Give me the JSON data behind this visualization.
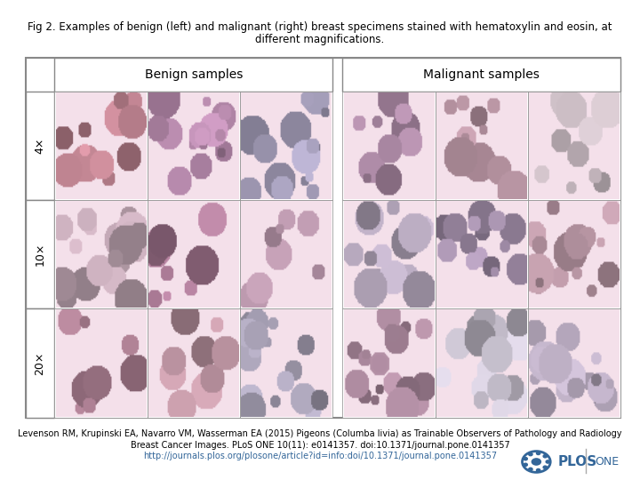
{
  "title_line1": "Fig 2. Examples of benign (left) and malignant (right) breast specimens stained with hematoxylin and eosin, at",
  "title_line2": "different magnifications.",
  "benign_label": "Benign samples",
  "malignant_label": "Malignant samples",
  "row_labels": [
    "4×",
    "10×",
    "20×"
  ],
  "citation_line1": "Levenson RM, Krupinski EA, Navarro VM, Wasserman EA (2015) Pigeons (Columba livia) as Trainable Observers of Pathology and Radiology",
  "citation_line2": "Breast Cancer Images. PLoS ONE 10(11): e0141357. doi:10.1371/journal.pone.0141357",
  "citation_url": "http://journals.plos.org/plosone/article?id=info:doi/10.1371/journal.pone.0141357",
  "bg_color": "#ffffff",
  "border_color": "#cccccc",
  "text_color": "#000000",
  "url_color": "#336699",
  "title_fontsize": 8.5,
  "label_fontsize": 10,
  "row_label_fontsize": 9,
  "citation_fontsize": 7,
  "grid_bg_benign": [
    [
      "#e8a0b0",
      "#d4a0c8",
      "#c0b8d8"
    ],
    [
      "#f0d0e0",
      "#c890b0",
      "#d8b0c8"
    ],
    [
      "#d8a0b8",
      "#e0b0c0",
      "#c8c0d8"
    ]
  ],
  "grid_bg_malignant": [
    [
      "#c8a0c0",
      "#d0a8b8",
      "#e8d8e0"
    ],
    [
      "#d0c0d8",
      "#c0a8c8",
      "#d8b0c0"
    ],
    [
      "#c8a0b8",
      "#e8e0f0",
      "#d8c8e0"
    ]
  ],
  "n_rows": 3,
  "n_benign_cols": 3,
  "n_malignant_cols": 3
}
